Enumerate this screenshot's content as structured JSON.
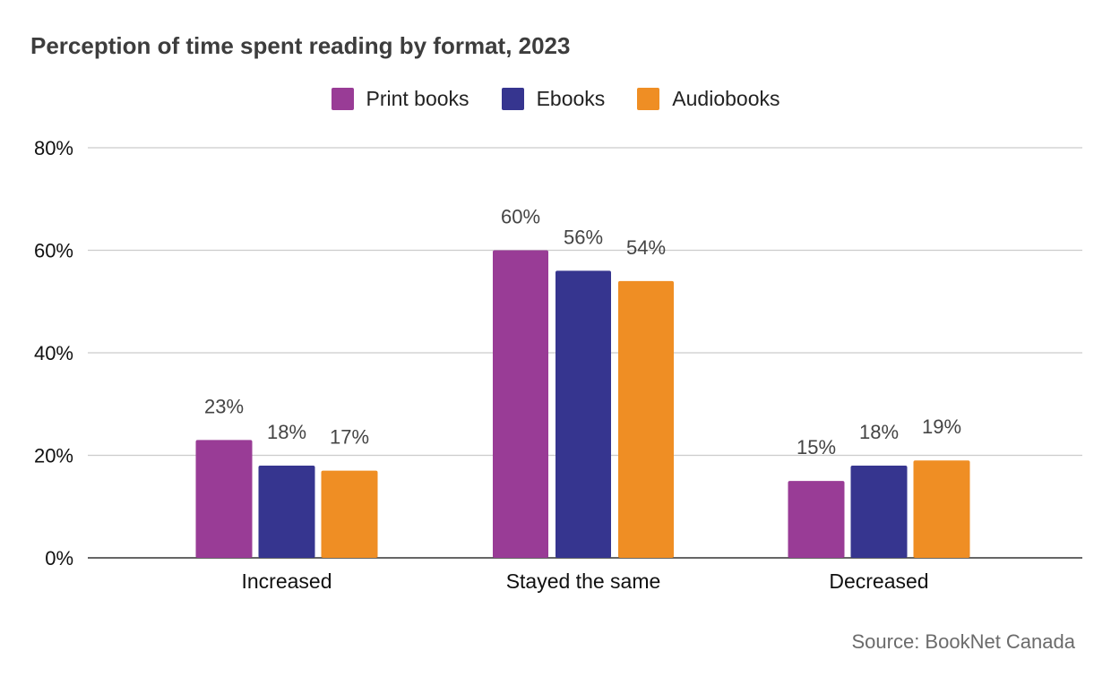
{
  "chart_data": {
    "type": "bar",
    "title": "Perception of time spent reading by format, 2023",
    "categories": [
      "Increased",
      "Stayed the same",
      "Decreased"
    ],
    "series": [
      {
        "name": "Print books",
        "color": "#993C96",
        "values": [
          23,
          60,
          15
        ],
        "labels": [
          "23%",
          "60%",
          "15%"
        ]
      },
      {
        "name": "Ebooks",
        "color": "#36358F",
        "values": [
          18,
          56,
          18
        ],
        "labels": [
          "18%",
          "56%",
          "18%"
        ]
      },
      {
        "name": "Audiobooks",
        "color": "#EF8E24",
        "values": [
          17,
          54,
          19
        ],
        "labels": [
          "17%",
          "54%",
          "19%"
        ]
      }
    ],
    "ylim": [
      0,
      80
    ],
    "yticks": [
      0,
      20,
      40,
      60,
      80
    ],
    "ytick_labels": [
      "0%",
      "20%",
      "40%",
      "60%",
      "80%"
    ],
    "xlabel": "",
    "ylabel": "",
    "grid": true,
    "legend_position": "top-center",
    "source": "Source: BookNet Canada"
  }
}
